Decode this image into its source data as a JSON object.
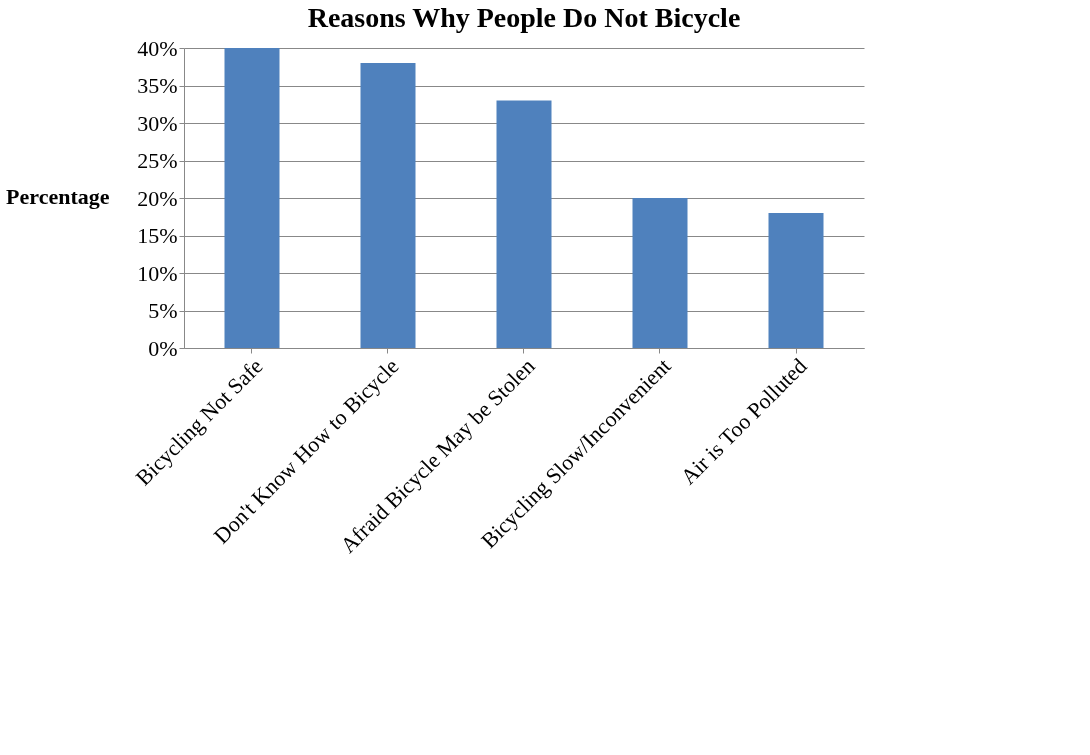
{
  "chart_data": {
    "type": "bar",
    "title": "Reasons Why People Do Not Bicycle",
    "ylabel": "Percentage",
    "categories": [
      "Bicycling Not Safe",
      "Don't Know How to Bicycle",
      "Afraid Bicycle May be Stolen",
      "Bicycling Slow/Inconvenient",
      "Air is Too Polluted"
    ],
    "values": [
      40,
      38,
      33,
      20,
      18
    ],
    "color": "#4f81bd",
    "ylim": [
      0,
      40
    ],
    "yticks": [
      {
        "value": 0,
        "label": "0%"
      },
      {
        "value": 5,
        "label": "5%"
      },
      {
        "value": 10,
        "label": "10%"
      },
      {
        "value": 15,
        "label": "15%"
      },
      {
        "value": 20,
        "label": "20%"
      },
      {
        "value": 25,
        "label": "25%"
      },
      {
        "value": 30,
        "label": "30%"
      },
      {
        "value": 35,
        "label": "35%"
      },
      {
        "value": 40,
        "label": "40%"
      }
    ],
    "grid": "y"
  }
}
